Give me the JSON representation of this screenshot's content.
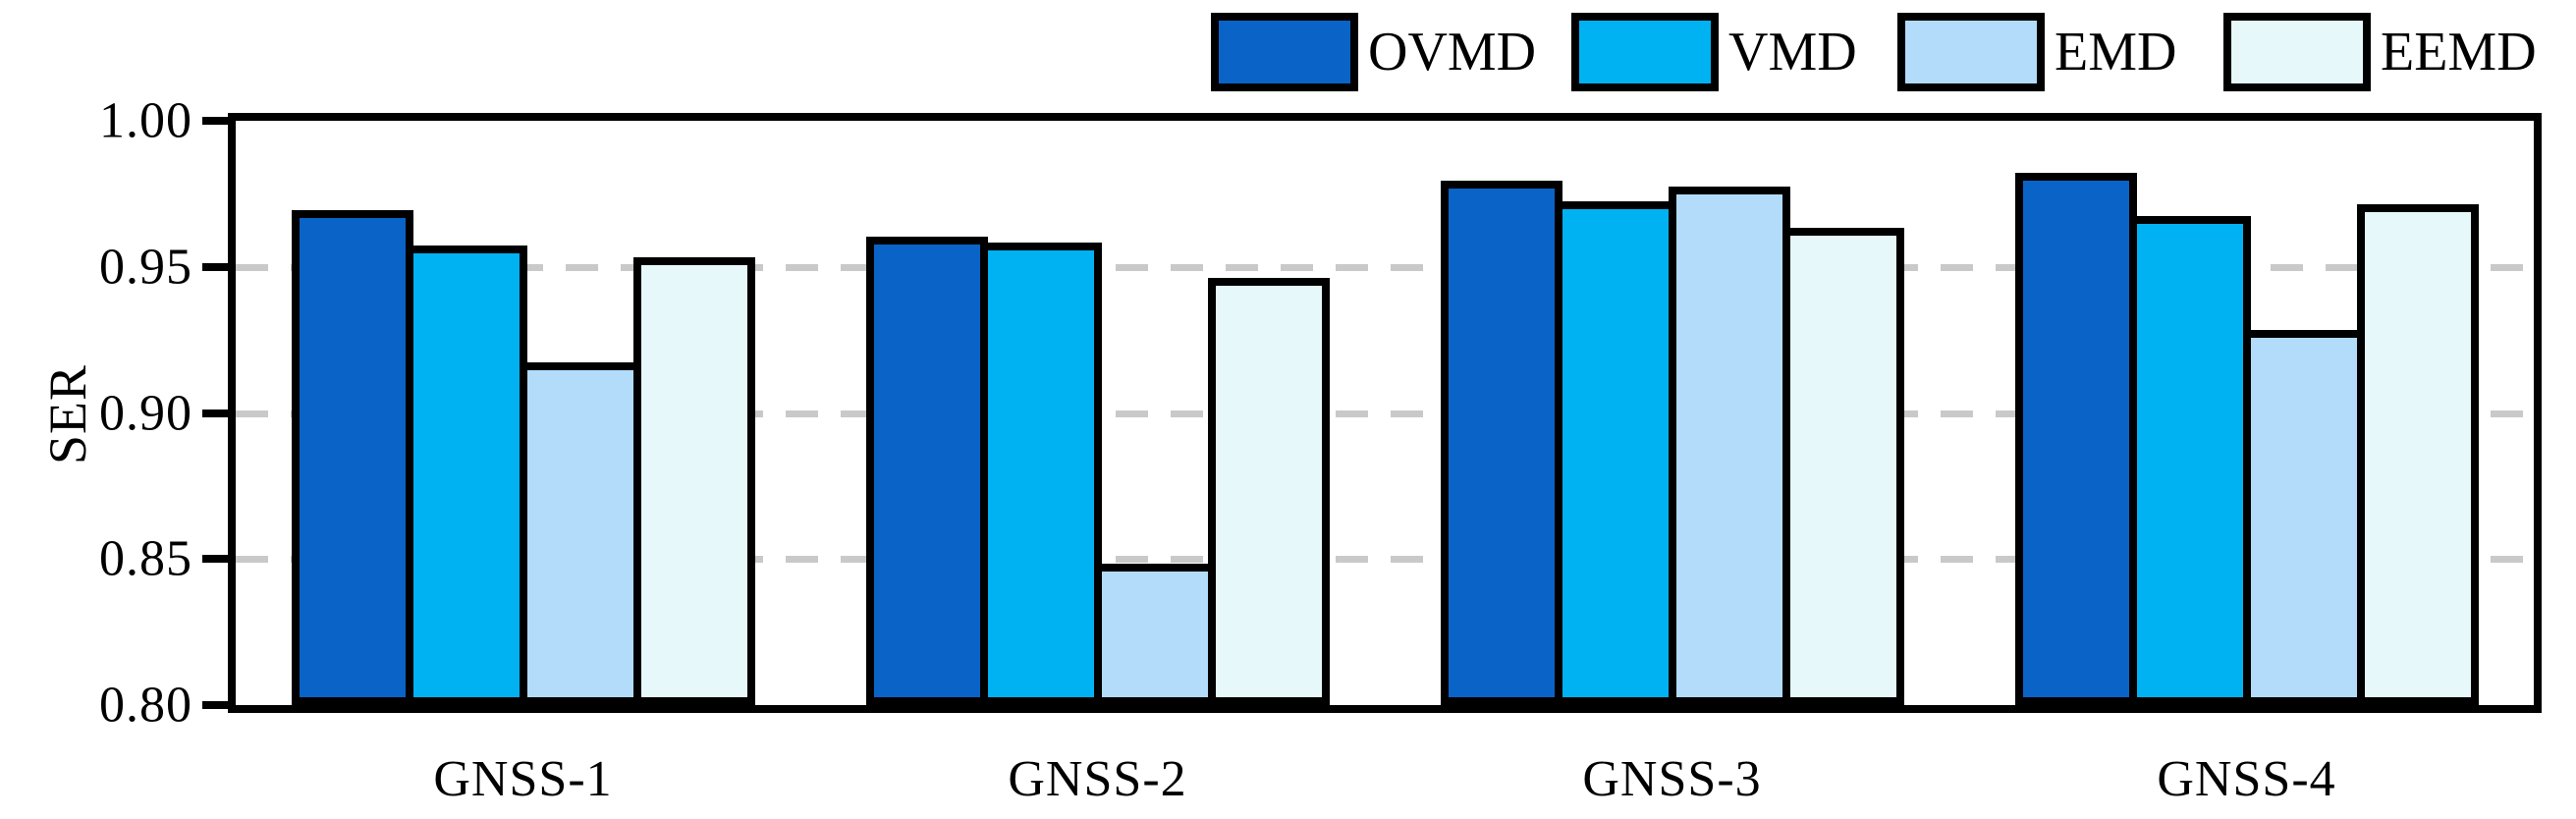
{
  "chart_data": {
    "type": "bar",
    "title": "",
    "xlabel": "",
    "ylabel": "SER",
    "ylim": [
      0.8,
      1.0
    ],
    "ytick_values": [
      1.0,
      0.95,
      0.9,
      0.85,
      0.8
    ],
    "ytick_labels": [
      "1.00",
      "0.95",
      "0.90",
      "0.85",
      "0.80"
    ],
    "gridline_values": [
      0.95,
      0.9,
      0.85
    ],
    "grid": "dashed horizontal gridlines at 0.85/0.90/0.95",
    "legend_position": "top-right, outside plot, horizontal row",
    "categories": [
      "GNSS-1",
      "GNSS-2",
      "GNSS-3",
      "GNSS-4"
    ],
    "series": [
      {
        "name": "OVMD",
        "color": "#0A63C7",
        "values": [
          0.968,
          0.959,
          0.978,
          0.981
        ]
      },
      {
        "name": "VMD",
        "color": "#00B2F2",
        "values": [
          0.956,
          0.957,
          0.971,
          0.966
        ]
      },
      {
        "name": "EMD",
        "color": "#B2DCFA",
        "values": [
          0.916,
          0.847,
          0.976,
          0.927
        ]
      },
      {
        "name": "EEMD",
        "color": "#E7F8FB",
        "values": [
          0.952,
          0.945,
          0.962,
          0.97
        ]
      }
    ]
  },
  "style_colors": {
    "axis": "#000000",
    "bar_border": "#000000",
    "gridline": "#C9C9C9",
    "background": "#FFFFFF"
  }
}
